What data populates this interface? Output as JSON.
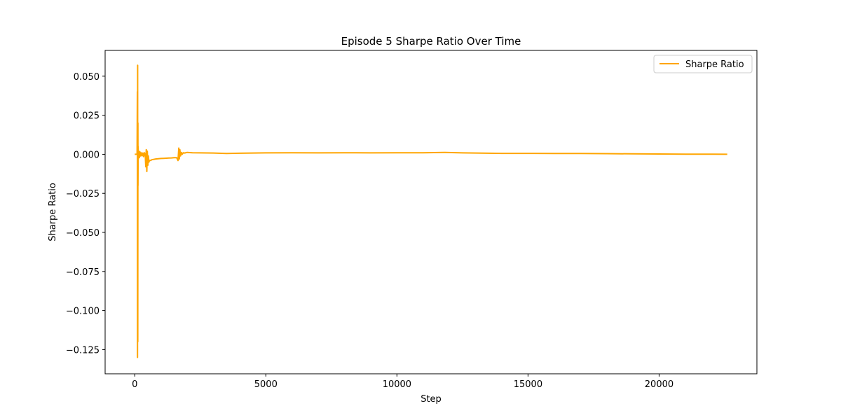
{
  "chart_data": {
    "type": "line",
    "title": "Episode 5 Sharpe Ratio Over Time",
    "xlabel": "Step",
    "ylabel": "Sharpe Ratio",
    "xlim": [
      -1130,
      23730
    ],
    "ylim": [
      -0.1405,
      0.0665
    ],
    "xticks": [
      0,
      5000,
      10000,
      15000,
      20000
    ],
    "xtick_labels": [
      "0",
      "5000",
      "10000",
      "15000",
      "20000"
    ],
    "yticks": [
      0.05,
      0.025,
      0.0,
      -0.025,
      -0.05,
      -0.075,
      -0.1,
      -0.125
    ],
    "ytick_labels": [
      "0.050",
      "0.025",
      "0.000",
      "−0.025",
      "−0.050",
      "−0.075",
      "−0.100",
      "−0.125"
    ],
    "grid": false,
    "legend_position": "top-right",
    "series": [
      {
        "name": "Sharpe Ratio",
        "color": "#ffa500",
        "x": [
          0,
          60,
          90,
          100,
          105,
          110,
          115,
          120,
          125,
          130,
          140,
          160,
          180,
          200,
          220,
          250,
          280,
          310,
          340,
          370,
          400,
          420,
          440,
          460,
          480,
          500,
          520,
          540,
          560,
          600,
          650,
          700,
          800,
          900,
          1000,
          1100,
          1200,
          1300,
          1400,
          1500,
          1600,
          1650,
          1680,
          1700,
          1720,
          1750,
          1780,
          1810,
          1850,
          1900,
          2000,
          2200,
          2500,
          3000,
          3500,
          4000,
          4500,
          5000,
          6000,
          7000,
          8000,
          9000,
          10000,
          11000,
          11800,
          12500,
          13000,
          14000,
          15000,
          16000,
          17000,
          18000,
          19000,
          20000,
          21000,
          22000,
          22600
        ],
        "y": [
          0.0,
          0.0,
          0.0,
          0.04,
          -0.13,
          0.057,
          -0.12,
          0.02,
          -0.02,
          0.005,
          -0.003,
          0.002,
          -0.002,
          0.0015,
          -0.001,
          0.001,
          -0.001,
          0.0008,
          -0.0015,
          0.001,
          0.0,
          -0.008,
          0.003,
          -0.011,
          0.002,
          -0.007,
          -0.001,
          -0.005,
          -0.004,
          -0.004,
          -0.0035,
          -0.0033,
          -0.003,
          -0.0028,
          -0.0027,
          -0.0026,
          -0.0025,
          -0.0024,
          -0.0023,
          -0.0022,
          -0.0022,
          -0.004,
          0.004,
          -0.003,
          0.003,
          -0.001,
          0.0012,
          0.0,
          0.001,
          0.0008,
          0.0012,
          0.001,
          0.0009,
          0.0008,
          0.0005,
          0.0007,
          0.0008,
          0.0009,
          0.001,
          0.0009,
          0.001,
          0.0009,
          0.001,
          0.001,
          0.0012,
          0.0009,
          0.0008,
          0.0006,
          0.0006,
          0.0005,
          0.0005,
          0.0004,
          0.0003,
          0.0002,
          0.0001,
          0.0001,
          0.0
        ]
      }
    ]
  }
}
